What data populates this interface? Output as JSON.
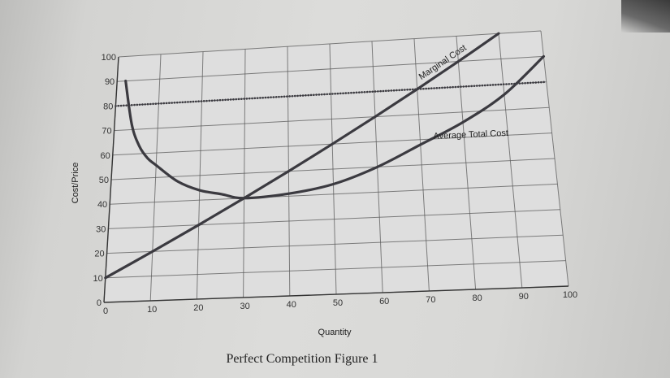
{
  "chart_data": {
    "type": "line",
    "title": "",
    "caption": "Perfect Competition Figure 1",
    "xlabel": "Quantity",
    "ylabel": "Cost/Price",
    "xlim": [
      0,
      100
    ],
    "ylim": [
      0,
      100
    ],
    "x_ticks": [
      0,
      10,
      20,
      30,
      40,
      50,
      60,
      70,
      80,
      90,
      100
    ],
    "y_ticks": [
      0,
      10,
      20,
      30,
      40,
      50,
      60,
      70,
      80,
      90,
      100
    ],
    "grid": true,
    "series": [
      {
        "name": "Marginal Cost",
        "style": "solid",
        "x": [
          0,
          10,
          20,
          30,
          40,
          50,
          60,
          70,
          80,
          90
        ],
        "y": [
          10,
          20,
          30,
          40,
          50,
          60,
          70,
          80,
          90,
          100
        ]
      },
      {
        "name": "Average Total Cost",
        "style": "solid",
        "x": [
          2,
          4,
          6,
          8,
          10,
          15,
          20,
          25,
          30,
          40,
          50,
          60,
          70,
          80,
          90,
          100
        ],
        "y": [
          90,
          72,
          63,
          58,
          55,
          48,
          44,
          42,
          40,
          41,
          44,
          50,
          58,
          66,
          76,
          90
        ]
      },
      {
        "name": "",
        "style": "dotted",
        "x": [
          0,
          100
        ],
        "y": [
          80,
          80
        ]
      }
    ],
    "colors": {
      "curve": "#3b3a40",
      "grid": "#5a5a5a",
      "text": "#333333"
    }
  }
}
